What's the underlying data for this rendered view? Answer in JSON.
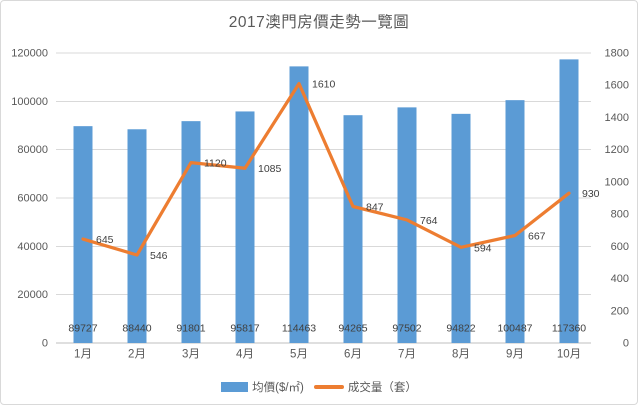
{
  "title": "2017澳門房價走勢一覽圖",
  "legend": {
    "bar_label": "均價($/㎡)",
    "line_label": "成交量（套）"
  },
  "colors": {
    "bar": "#5B9BD5",
    "line": "#ED7D31",
    "grid": "#D9D9D9",
    "axis_line": "#BFBFBF",
    "axis_text": "#595959",
    "data_label": "#404040",
    "frame_border": "#D9D9D9"
  },
  "chart_data": {
    "type": "combo",
    "title": "2017澳門房價走勢一覽圖",
    "categories": [
      "1月",
      "2月",
      "3月",
      "4月",
      "5月",
      "6月",
      "7月",
      "8月",
      "9月",
      "10月"
    ],
    "series": [
      {
        "name": "均價($/㎡)",
        "type": "bar",
        "axis": "left",
        "color": "#5B9BD5",
        "values": [
          89727,
          88440,
          91801,
          95817,
          114463,
          94265,
          97502,
          94822,
          100487,
          117360
        ]
      },
      {
        "name": "成交量（套）",
        "type": "line",
        "axis": "right",
        "color": "#ED7D31",
        "values": [
          645,
          546,
          1120,
          1085,
          1610,
          847,
          764,
          594,
          667,
          930
        ]
      }
    ],
    "left_axis": {
      "min": 0,
      "max": 120000,
      "step": 20000
    },
    "right_axis": {
      "min": 0,
      "max": 1800,
      "step": 200
    },
    "grid": true,
    "data_labels": true,
    "legend_position": "bottom"
  }
}
